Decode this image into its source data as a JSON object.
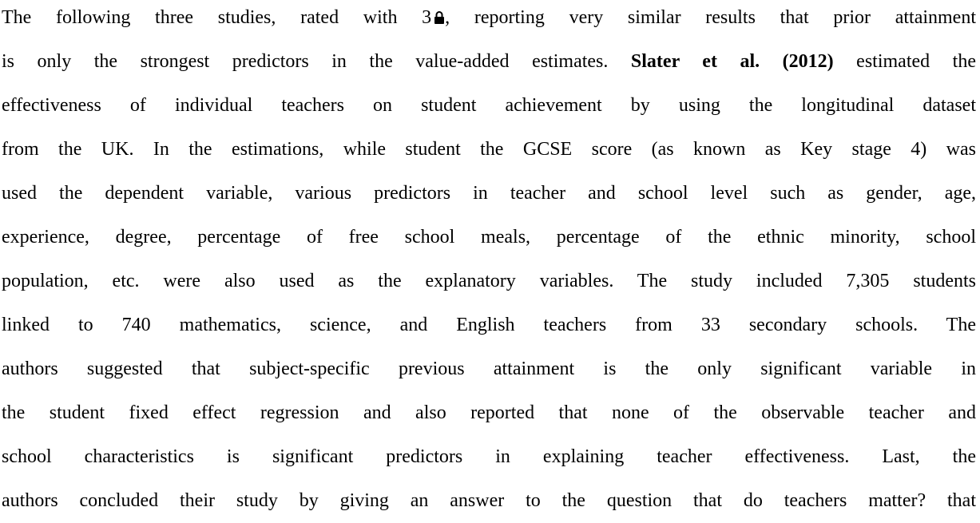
{
  "paragraph": {
    "lines": [
      [
        "The following three studies, rated with 3",
        ", reporting very similar results that prior attainment"
      ],
      [
        "is only the strongest predictors in the value-added estimates. ",
        "Slater et al. (2012)",
        " estimated the"
      ],
      [
        "effectiveness of individual teachers on student achievement by using the longitudinal dataset"
      ],
      [
        "from the UK. In the estimations, while student the GCSE score (as known as Key stage 4) was"
      ],
      [
        "used the dependent variable, various predictors in teacher and school level such as gender, age,"
      ],
      [
        "experience, degree, percentage of free school meals, percentage of the ethnic minority, school"
      ],
      [
        "population, etc. were also used as the explanatory variables. The study included 7,305 students"
      ],
      [
        "linked to 740 mathematics, science, and English teachers from 33 secondary schools. The"
      ],
      [
        "authors suggested that subject-specific previous attainment is the only significant variable in"
      ],
      [
        "the student fixed effect regression and also reported that none of the observable teacher and"
      ],
      [
        "school characteristics is significant predictors in explaining teacher effectiveness. Last, the"
      ],
      [
        "authors concluded their study by giving an answer to the question that do teachers matter? that"
      ]
    ]
  }
}
